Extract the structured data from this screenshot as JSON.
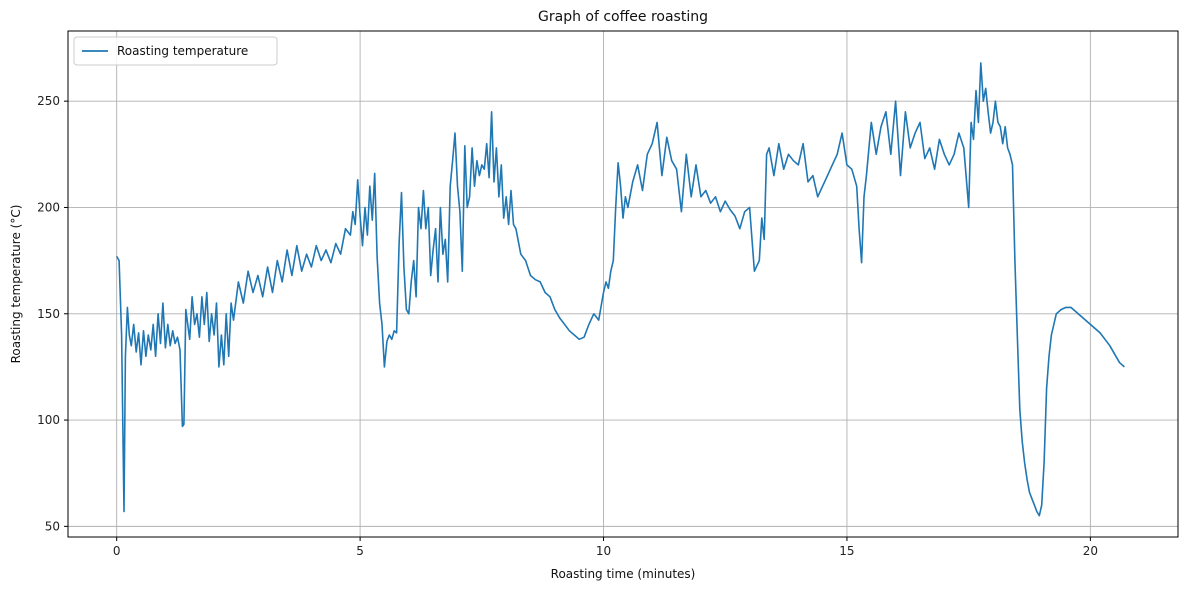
{
  "chart_data": {
    "type": "line",
    "title": "Graph of coffee roasting",
    "xlabel": "Roasting time (minutes)",
    "ylabel": "Roasting temperature (°C)",
    "xlim": [
      -1.0,
      21.8
    ],
    "ylim": [
      45,
      283
    ],
    "xticks": [
      0,
      5,
      10,
      15,
      20
    ],
    "yticks": [
      50,
      100,
      150,
      200,
      250
    ],
    "grid": true,
    "legend_position": "top-left",
    "colors": {
      "line": "#1f77b4",
      "grid": "#b0b0b0",
      "axes": "#000000"
    },
    "series": [
      {
        "name": "Roasting temperature",
        "x": [
          0.0,
          0.05,
          0.1,
          0.15,
          0.18,
          0.22,
          0.26,
          0.3,
          0.35,
          0.4,
          0.45,
          0.5,
          0.55,
          0.6,
          0.65,
          0.7,
          0.75,
          0.8,
          0.85,
          0.9,
          0.95,
          1.0,
          1.05,
          1.1,
          1.15,
          1.2,
          1.25,
          1.3,
          1.35,
          1.38,
          1.42,
          1.5,
          1.55,
          1.6,
          1.65,
          1.7,
          1.75,
          1.8,
          1.85,
          1.9,
          1.95,
          2.0,
          2.05,
          2.1,
          2.15,
          2.2,
          2.25,
          2.3,
          2.35,
          2.4,
          2.5,
          2.6,
          2.7,
          2.8,
          2.9,
          3.0,
          3.1,
          3.2,
          3.3,
          3.4,
          3.5,
          3.6,
          3.7,
          3.8,
          3.9,
          4.0,
          4.1,
          4.2,
          4.3,
          4.4,
          4.5,
          4.6,
          4.7,
          4.8,
          4.85,
          4.9,
          4.95,
          5.0,
          5.05,
          5.1,
          5.15,
          5.2,
          5.25,
          5.3,
          5.35,
          5.4,
          5.45,
          5.5,
          5.55,
          5.6,
          5.65,
          5.7,
          5.75,
          5.8,
          5.85,
          5.9,
          5.95,
          6.0,
          6.05,
          6.1,
          6.15,
          6.2,
          6.25,
          6.3,
          6.35,
          6.4,
          6.45,
          6.5,
          6.55,
          6.6,
          6.65,
          6.7,
          6.75,
          6.8,
          6.85,
          6.9,
          6.95,
          7.0,
          7.05,
          7.1,
          7.15,
          7.2,
          7.25,
          7.3,
          7.35,
          7.4,
          7.45,
          7.5,
          7.55,
          7.6,
          7.65,
          7.7,
          7.75,
          7.8,
          7.85,
          7.9,
          7.95,
          8.0,
          8.05,
          8.1,
          8.15,
          8.2,
          8.3,
          8.4,
          8.5,
          8.6,
          8.7,
          8.8,
          8.9,
          9.0,
          9.1,
          9.2,
          9.3,
          9.4,
          9.5,
          9.6,
          9.7,
          9.8,
          9.9,
          10.0,
          10.05,
          10.1,
          10.15,
          10.2,
          10.25,
          10.3,
          10.35,
          10.4,
          10.45,
          10.5,
          10.55,
          10.6,
          10.7,
          10.8,
          10.9,
          11.0,
          11.1,
          11.2,
          11.3,
          11.4,
          11.5,
          11.6,
          11.7,
          11.8,
          11.9,
          12.0,
          12.1,
          12.2,
          12.3,
          12.4,
          12.5,
          12.6,
          12.7,
          12.8,
          12.9,
          13.0,
          13.1,
          13.2,
          13.25,
          13.3,
          13.35,
          13.4,
          13.5,
          13.6,
          13.7,
          13.8,
          13.9,
          14.0,
          14.1,
          14.2,
          14.3,
          14.4,
          14.5,
          14.6,
          14.7,
          14.8,
          14.9,
          15.0,
          15.1,
          15.2,
          15.25,
          15.3,
          15.35,
          15.4,
          15.5,
          15.6,
          15.7,
          15.8,
          15.9,
          16.0,
          16.1,
          16.2,
          16.3,
          16.4,
          16.5,
          16.6,
          16.7,
          16.8,
          16.9,
          17.0,
          17.1,
          17.2,
          17.3,
          17.4,
          17.5,
          17.55,
          17.6,
          17.65,
          17.7,
          17.75,
          17.8,
          17.85,
          17.9,
          17.95,
          18.0,
          18.05,
          18.1,
          18.15,
          18.2,
          18.25,
          18.3,
          18.35,
          18.4,
          18.45,
          18.5,
          18.55,
          18.6,
          18.65,
          18.7,
          18.75,
          18.8,
          18.85,
          18.9,
          18.95,
          19.0,
          19.05,
          19.1,
          19.15,
          19.2,
          19.3,
          19.4,
          19.5,
          19.6,
          19.7,
          19.8,
          19.9,
          20.0,
          20.1,
          20.2,
          20.3,
          20.4,
          20.5,
          20.6,
          20.7
        ],
        "values": [
          177,
          175,
          140,
          57,
          130,
          153,
          140,
          135,
          145,
          132,
          141,
          126,
          142,
          130,
          140,
          133,
          145,
          130,
          150,
          136,
          155,
          134,
          145,
          135,
          142,
          136,
          139,
          133,
          97,
          98,
          152,
          138,
          158,
          145,
          150,
          139,
          158,
          145,
          160,
          137,
          150,
          140,
          155,
          125,
          140,
          126,
          150,
          130,
          155,
          147,
          165,
          155,
          170,
          160,
          168,
          158,
          172,
          160,
          175,
          165,
          180,
          168,
          182,
          170,
          178,
          172,
          182,
          175,
          180,
          174,
          183,
          178,
          190,
          187,
          198,
          192,
          213,
          196,
          182,
          200,
          187,
          210,
          194,
          216,
          177,
          155,
          145,
          125,
          137,
          140,
          138,
          142,
          141,
          183,
          207,
          172,
          152,
          150,
          165,
          175,
          158,
          200,
          190,
          208,
          190,
          200,
          168,
          180,
          190,
          165,
          200,
          178,
          185,
          165,
          210,
          222,
          235,
          210,
          198,
          170,
          229,
          200,
          205,
          228,
          210,
          222,
          215,
          220,
          218,
          230,
          214,
          245,
          212,
          228,
          205,
          220,
          195,
          205,
          192,
          208,
          192,
          190,
          178,
          175,
          168,
          166,
          165,
          160,
          158,
          152,
          148,
          145,
          142,
          140,
          138,
          139,
          145,
          150,
          147,
          160,
          165,
          162,
          170,
          175,
          200,
          221,
          210,
          195,
          205,
          200,
          206,
          212,
          220,
          208,
          225,
          230,
          240,
          215,
          233,
          222,
          218,
          198,
          225,
          205,
          220,
          205,
          208,
          202,
          205,
          198,
          203,
          199,
          196,
          190,
          198,
          200,
          170,
          175,
          195,
          185,
          225,
          228,
          215,
          230,
          218,
          225,
          222,
          220,
          230,
          212,
          215,
          205,
          210,
          215,
          220,
          225,
          235,
          220,
          218,
          210,
          190,
          174,
          205,
          215,
          240,
          225,
          238,
          245,
          225,
          250,
          215,
          245,
          228,
          235,
          240,
          223,
          228,
          218,
          232,
          225,
          220,
          225,
          235,
          228,
          200,
          240,
          232,
          255,
          240,
          268,
          250,
          256,
          245,
          235,
          240,
          250,
          240,
          238,
          230,
          238,
          228,
          225,
          220,
          175,
          140,
          105,
          90,
          80,
          72,
          66,
          63,
          60,
          57,
          55,
          60,
          80,
          115,
          130,
          140,
          150,
          152,
          153,
          153,
          151,
          149,
          147,
          145,
          143,
          141,
          138,
          135,
          131,
          127,
          125
        ]
      }
    ]
  }
}
